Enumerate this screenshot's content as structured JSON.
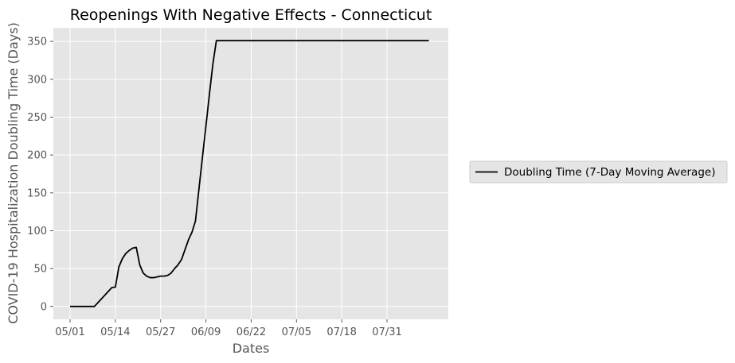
{
  "chart_data": {
    "type": "line",
    "title": "Reopenings With Negative Effects - Connecticut",
    "xlabel": "Dates",
    "ylabel": "COVID-19 Hospitalization Doubling Time (Days)",
    "x_ticks": [
      "05/01",
      "05/14",
      "05/27",
      "06/09",
      "06/22",
      "07/05",
      "07/18",
      "07/31"
    ],
    "y_ticks": [
      0,
      50,
      100,
      150,
      200,
      250,
      300,
      350
    ],
    "xlim_days": [
      -4.8,
      108.6
    ],
    "ylim": [
      -17,
      368
    ],
    "grid": true,
    "legend_position": "right",
    "series": [
      {
        "name": "Doubling Time (7-Day Moving Average)",
        "color": "#000000",
        "x_days_since_0501": [
          0,
          7,
          8,
          9,
          10,
          11,
          12,
          13,
          14,
          15,
          16,
          17,
          18,
          19,
          20,
          21,
          22,
          23,
          24,
          25,
          26,
          27,
          28,
          29,
          30,
          31,
          32,
          33,
          34,
          35,
          36,
          37,
          38,
          39,
          40,
          41,
          42,
          43,
          44,
          45,
          46,
          47,
          48,
          49,
          50,
          103
        ],
        "values": [
          0,
          0,
          5,
          10,
          15,
          20,
          25,
          25.5,
          52,
          63,
          70,
          74,
          77,
          78,
          55,
          44,
          40,
          38,
          38,
          39,
          40,
          40,
          41,
          44,
          50,
          55,
          62,
          75,
          88,
          98,
          113,
          155,
          197,
          238,
          280,
          320,
          351,
          351,
          351,
          351,
          351,
          351,
          351,
          351,
          351,
          351
        ]
      }
    ]
  }
}
